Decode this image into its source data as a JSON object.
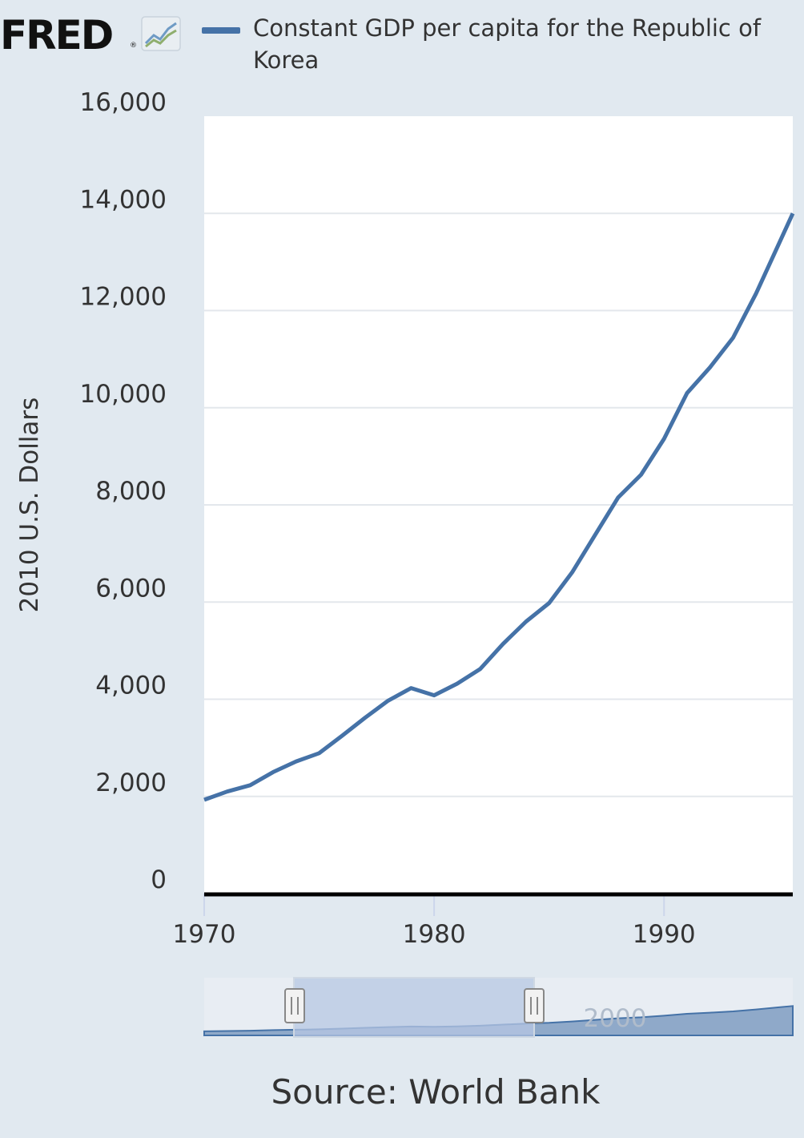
{
  "header": {
    "logo_text": "FRED",
    "logo_mark": "®",
    "logo_icon": "line-chart-icon"
  },
  "colors": {
    "background": "#e1e9f0",
    "plot_background": "#ffffff",
    "series": "#4572a7",
    "navigator_fill": "#8fa9c9",
    "navigator_selection": "#b7c7e3"
  },
  "chart_data": {
    "type": "line",
    "title": "",
    "xlabel": "",
    "ylabel": "2010 U.S. Dollars",
    "xlim": [
      1970,
      1995.6
    ],
    "ylim": [
      0,
      16000
    ],
    "y_ticks": [
      "0",
      "2,000",
      "4,000",
      "6,000",
      "8,000",
      "10,000",
      "12,000",
      "14,000",
      "16,000"
    ],
    "y_tick_values": [
      0,
      2000,
      4000,
      6000,
      8000,
      10000,
      12000,
      14000,
      16000
    ],
    "x_ticks": [
      "1970",
      "1980",
      "1990"
    ],
    "x_tick_values": [
      1970,
      1980,
      1990
    ],
    "grid": true,
    "legend_position": "top",
    "series": [
      {
        "name": "Constant GDP per capita for the Republic of Korea",
        "x": [
          1970,
          1971,
          1972,
          1973,
          1974,
          1975,
          1976,
          1977,
          1978,
          1979,
          1980,
          1981,
          1982,
          1983,
          1984,
          1985,
          1986,
          1987,
          1988,
          1989,
          1990,
          1991,
          1992,
          1993,
          1994,
          1995,
          1995.6
        ],
        "values": [
          1930,
          2100,
          2230,
          2500,
          2720,
          2890,
          3250,
          3620,
          3970,
          4230,
          4080,
          4320,
          4620,
          5140,
          5600,
          5980,
          6610,
          7380,
          8150,
          8620,
          9360,
          10300,
          10830,
          11440,
          12350,
          13380,
          14000
        ]
      }
    ],
    "navigator": {
      "x_label": "2000",
      "selected_range": [
        1970,
        1995.6
      ]
    }
  },
  "source": "Source: World Bank"
}
